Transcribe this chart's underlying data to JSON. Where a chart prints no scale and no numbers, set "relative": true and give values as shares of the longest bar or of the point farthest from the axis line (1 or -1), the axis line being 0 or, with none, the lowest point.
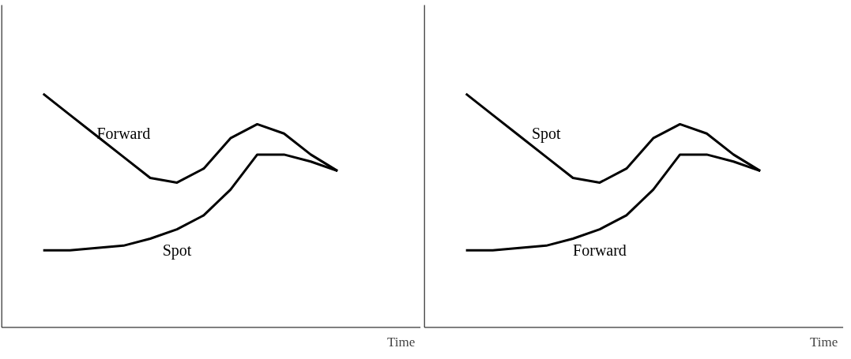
{
  "chart_data": [
    {
      "type": "line",
      "xlabel": "Time",
      "relative": true,
      "categories": [
        null,
        null,
        null,
        null,
        null,
        null,
        null,
        null,
        null,
        null,
        null,
        null
      ],
      "series": [
        {
          "name": "Forward",
          "color": "#000000",
          "values": [
            1.0,
            0.91,
            0.82,
            0.73,
            0.64,
            0.62,
            0.68,
            0.81,
            0.87,
            0.83,
            0.74,
            0.67
          ]
        },
        {
          "name": "Spot",
          "color": "#000000",
          "values": [
            0.33,
            0.33,
            0.34,
            0.35,
            0.38,
            0.42,
            0.48,
            0.59,
            0.74,
            0.74,
            0.71,
            0.67
          ]
        }
      ]
    },
    {
      "type": "line",
      "xlabel": "Time",
      "relative": true,
      "categories": [
        null,
        null,
        null,
        null,
        null,
        null,
        null,
        null,
        null,
        null,
        null,
        null
      ],
      "series": [
        {
          "name": "Spot",
          "color": "#000000",
          "values": [
            1.0,
            0.91,
            0.82,
            0.73,
            0.64,
            0.62,
            0.68,
            0.81,
            0.87,
            0.83,
            0.74,
            0.67
          ]
        },
        {
          "name": "Forward",
          "color": "#000000",
          "values": [
            0.33,
            0.33,
            0.34,
            0.35,
            0.38,
            0.42,
            0.48,
            0.59,
            0.74,
            0.74,
            0.71,
            0.67
          ]
        }
      ]
    }
  ]
}
